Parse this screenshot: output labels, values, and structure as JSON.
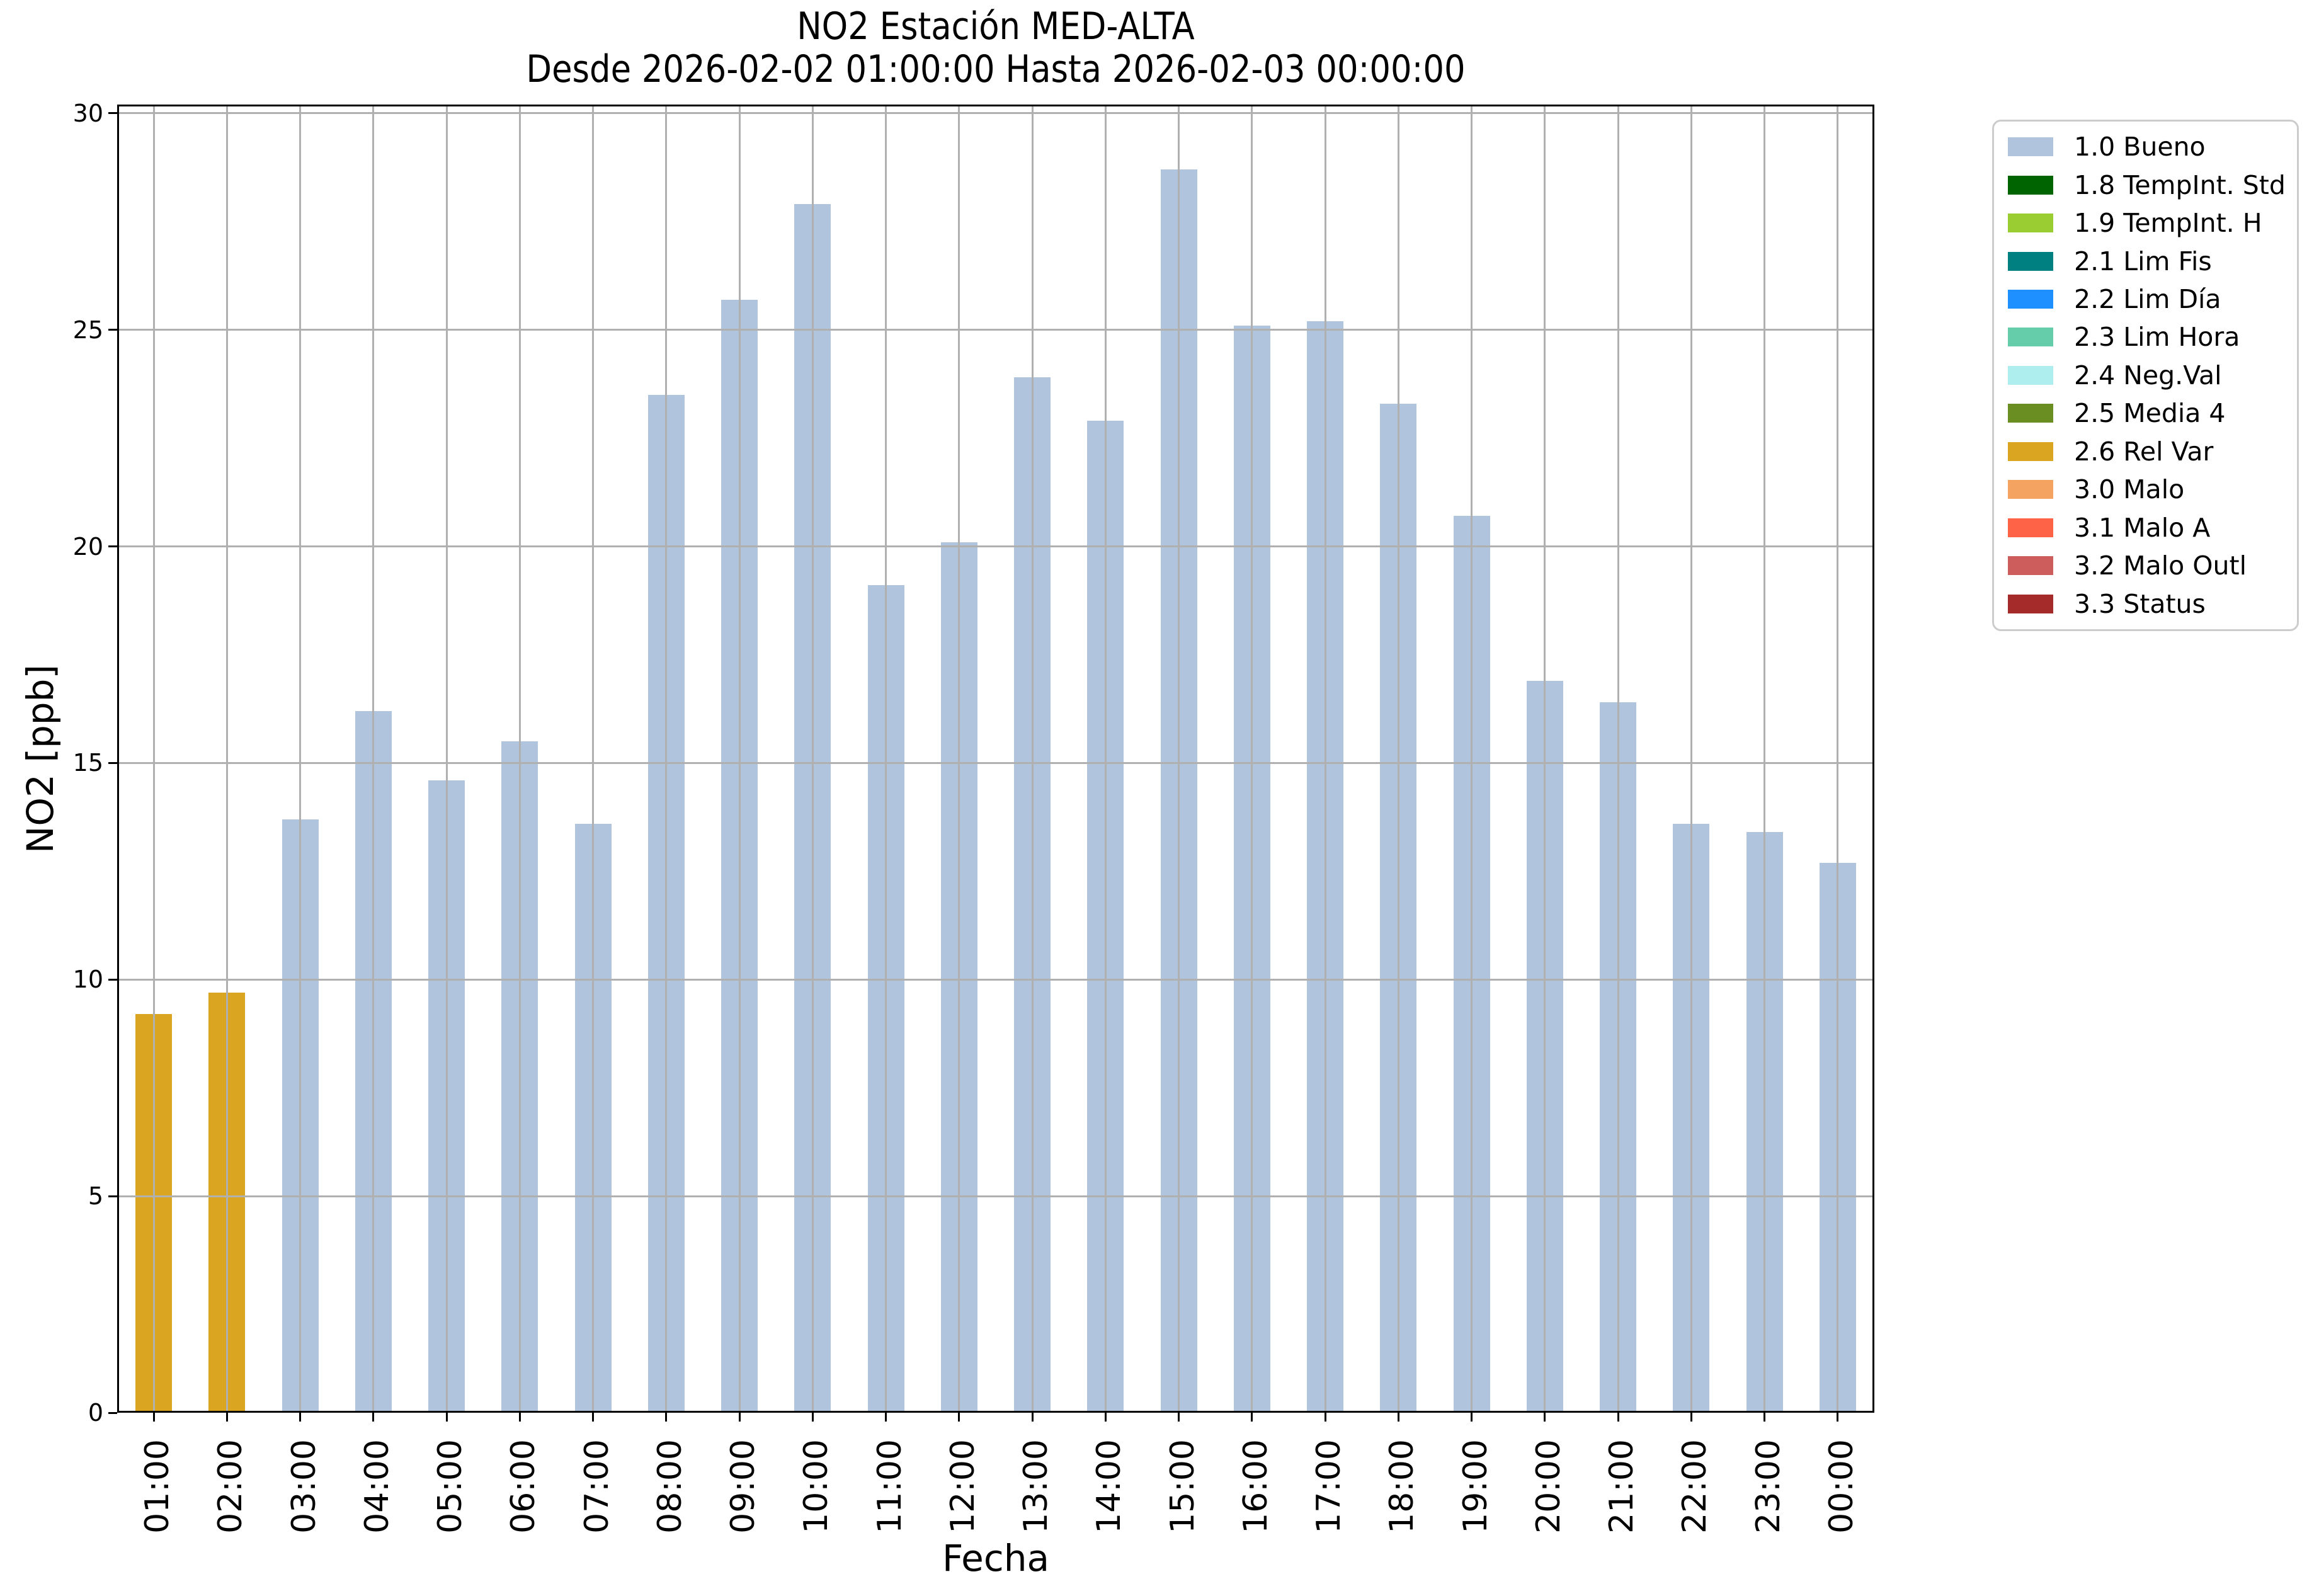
{
  "chart_data": {
    "type": "bar",
    "title": "NO2 Estación MED-ALTA",
    "subtitle": "Desde 2026-02-02 01:00:00 Hasta 2026-02-03 00:00:00",
    "xlabel": "Fecha",
    "ylabel": "NO2 [ppb]",
    "ylim": [
      0,
      30.2
    ],
    "yticks": [
      0,
      5,
      10,
      15,
      20,
      25,
      30
    ],
    "grid": true,
    "legend_position": "outside-right-top",
    "categories": [
      "01:00",
      "02:00",
      "03:00",
      "04:00",
      "05:00",
      "06:00",
      "07:00",
      "08:00",
      "09:00",
      "10:00",
      "11:00",
      "12:00",
      "13:00",
      "14:00",
      "15:00",
      "16:00",
      "17:00",
      "18:00",
      "19:00",
      "20:00",
      "21:00",
      "22:00",
      "23:00",
      "00:00"
    ],
    "values": [
      9.2,
      9.7,
      13.7,
      16.2,
      14.6,
      15.5,
      13.6,
      23.5,
      25.7,
      27.9,
      19.1,
      20.1,
      23.9,
      22.9,
      28.7,
      25.1,
      25.2,
      23.3,
      20.7,
      16.9,
      16.4,
      13.6,
      13.4,
      12.7
    ],
    "bar_status": [
      "2.6",
      "2.6",
      "1.0",
      "1.0",
      "1.0",
      "1.0",
      "1.0",
      "1.0",
      "1.0",
      "1.0",
      "1.0",
      "1.0",
      "1.0",
      "1.0",
      "1.0",
      "1.0",
      "1.0",
      "1.0",
      "1.0",
      "1.0",
      "1.0",
      "1.0",
      "1.0",
      "1.0"
    ],
    "status_colors": {
      "1.0": "#b0c4de",
      "1.8": "#006400",
      "1.9": "#9acd32",
      "2.1": "#008080",
      "2.2": "#1e90ff",
      "2.3": "#66cdaa",
      "2.4": "#afeeee",
      "2.5": "#6b8e23",
      "2.6": "#daa520",
      "3.0": "#f4a460",
      "3.1": "#ff6347",
      "3.2": "#cd5c5c",
      "3.3": "#a52a2a"
    }
  },
  "legend": {
    "items": [
      {
        "label": "1.0 Bueno",
        "color": "#b0c4de"
      },
      {
        "label": "1.8 TempInt. Std",
        "color": "#006400"
      },
      {
        "label": "1.9 TempInt. H",
        "color": "#9acd32"
      },
      {
        "label": "2.1 Lim Fis",
        "color": "#008080"
      },
      {
        "label": "2.2 Lim Día",
        "color": "#1e90ff"
      },
      {
        "label": "2.3 Lim Hora",
        "color": "#66cdaa"
      },
      {
        "label": "2.4 Neg.Val",
        "color": "#afeeee"
      },
      {
        "label": "2.5 Media 4",
        "color": "#6b8e23"
      },
      {
        "label": "2.6 Rel Var",
        "color": "#daa520"
      },
      {
        "label": "3.0 Malo",
        "color": "#f4a460"
      },
      {
        "label": "3.1 Malo A",
        "color": "#ff6347"
      },
      {
        "label": "3.2 Malo Outl",
        "color": "#cd5c5c"
      },
      {
        "label": "3.3 Status",
        "color": "#a52a2a"
      }
    ]
  }
}
